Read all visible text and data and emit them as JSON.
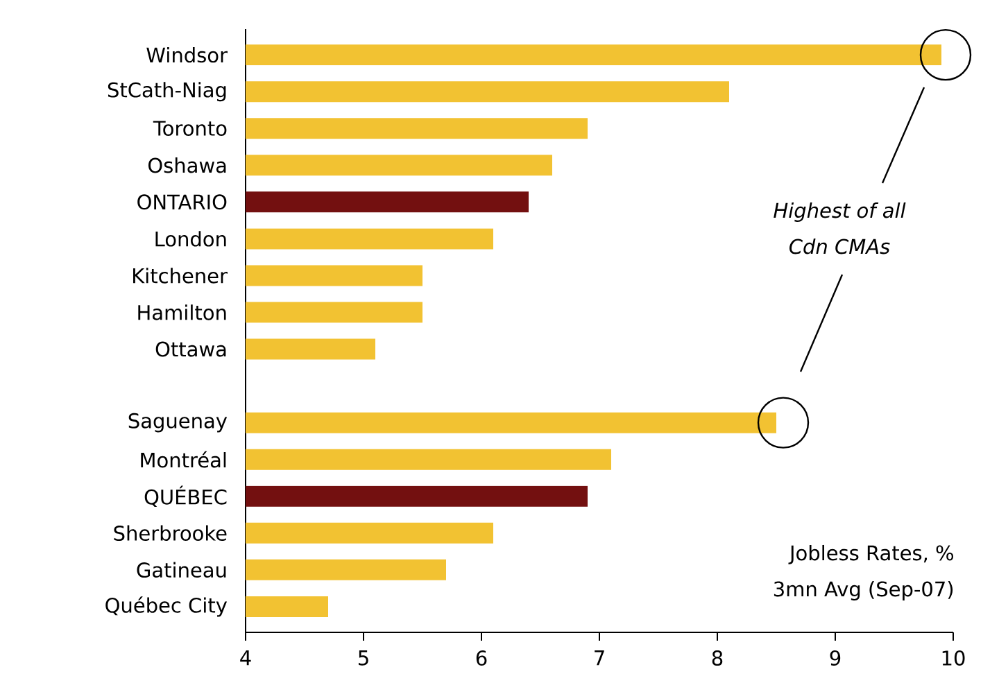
{
  "chart_data": {
    "type": "bar",
    "orientation": "horizontal",
    "categories": [
      "Windsor",
      "StCath-Niag",
      "Toronto",
      "Oshawa",
      "ONTARIO",
      "London",
      "Kitchener",
      "Hamilton",
      "Ottawa",
      null,
      "Saguenay",
      "Montréal",
      "QUÉBEC",
      "Sherbrooke",
      "Gatineau",
      "Québec City"
    ],
    "values": [
      9.9,
      8.1,
      6.9,
      6.6,
      6.4,
      6.1,
      5.5,
      5.5,
      5.1,
      null,
      8.5,
      7.1,
      6.9,
      6.1,
      5.7,
      4.7
    ],
    "colors": [
      "#f2c232",
      "#f2c232",
      "#f2c232",
      "#f2c232",
      "#731010",
      "#f2c232",
      "#f2c232",
      "#f2c232",
      "#f2c232",
      "#f2c232",
      "#f2c232",
      "#f2c232",
      "#731010",
      "#f2c232",
      "#f2c232",
      "#f2c232"
    ],
    "xlim": [
      4,
      10
    ],
    "xticks": [
      4,
      5,
      6,
      7,
      8,
      9,
      10
    ],
    "grid": false,
    "annotations": [
      "Highest of all",
      "Cdn CMAs",
      "Jobless Rates, %",
      "3mn Avg (Sep-07)"
    ]
  }
}
